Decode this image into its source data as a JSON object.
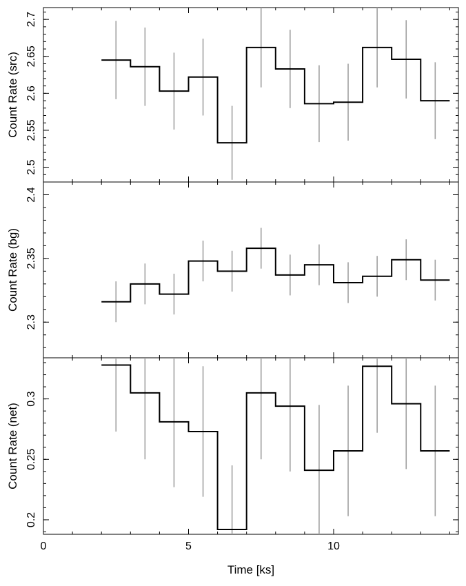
{
  "chart_data": [
    {
      "type": "line",
      "ylabel": "Count Rate (src)",
      "x": [
        2.5,
        3.5,
        4.5,
        5.5,
        6.5,
        7.5,
        8.5,
        9.5,
        10.5,
        11.5,
        12.5,
        13.5
      ],
      "bin_edges": [
        2,
        3,
        4,
        5,
        6,
        7,
        8,
        9,
        10,
        11,
        12,
        13,
        14
      ],
      "values": [
        2.645,
        2.636,
        2.603,
        2.622,
        2.533,
        2.662,
        2.633,
        2.586,
        2.588,
        2.662,
        2.646,
        2.59
      ],
      "errors": [
        0.053,
        0.053,
        0.052,
        0.052,
        0.05,
        0.054,
        0.053,
        0.052,
        0.052,
        0.054,
        0.053,
        0.052
      ],
      "xlim": [
        0,
        14.3
      ],
      "ylim": [
        2.48,
        2.716
      ],
      "yticks": [
        2.5,
        2.55,
        2.6,
        2.65,
        2.7
      ],
      "yticklabels": [
        "2.5",
        "2.55",
        "2.6",
        "2.65",
        "2.7"
      ],
      "colors": {
        "line": "#000000",
        "error": "#a0a0a0"
      }
    },
    {
      "type": "line",
      "ylabel": "Count Rate (bg)",
      "x": [
        2.5,
        3.5,
        4.5,
        5.5,
        6.5,
        7.5,
        8.5,
        9.5,
        10.5,
        11.5,
        12.5,
        13.5
      ],
      "bin_edges": [
        2,
        3,
        4,
        5,
        6,
        7,
        8,
        9,
        10,
        11,
        12,
        13,
        14
      ],
      "values": [
        2.316,
        2.33,
        2.322,
        2.348,
        2.34,
        2.358,
        2.337,
        2.345,
        2.331,
        2.336,
        2.349,
        2.333
      ],
      "errors": [
        0.016,
        0.016,
        0.016,
        0.016,
        0.016,
        0.016,
        0.016,
        0.016,
        0.016,
        0.016,
        0.016,
        0.016
      ],
      "xlim": [
        0,
        14.3
      ],
      "ylim": [
        2.272,
        2.41
      ],
      "yticks": [
        2.3,
        2.35,
        2.4
      ],
      "yticklabels": [
        "2.3",
        "2.35",
        "2.4"
      ],
      "colors": {
        "line": "#000000",
        "error": "#a0a0a0"
      }
    },
    {
      "type": "line",
      "ylabel": "Count Rate (net)",
      "xlabel": "Time [ks]",
      "x": [
        2.5,
        3.5,
        4.5,
        5.5,
        6.5,
        7.5,
        8.5,
        9.5,
        10.5,
        11.5,
        12.5,
        13.5
      ],
      "bin_edges": [
        2,
        3,
        4,
        5,
        6,
        7,
        8,
        9,
        10,
        11,
        12,
        13,
        14
      ],
      "values": [
        0.328,
        0.305,
        0.281,
        0.273,
        0.192,
        0.305,
        0.294,
        0.241,
        0.257,
        0.327,
        0.296,
        0.257
      ],
      "errors": [
        0.055,
        0.055,
        0.054,
        0.054,
        0.053,
        0.055,
        0.054,
        0.054,
        0.054,
        0.055,
        0.054,
        0.054
      ],
      "xlim": [
        0,
        14.3
      ],
      "ylim": [
        0.188,
        0.334
      ],
      "yticks": [
        0.2,
        0.25,
        0.3
      ],
      "yticklabels": [
        "0.2",
        "0.25",
        "0.3"
      ],
      "xticks": [
        0,
        5,
        10
      ],
      "xticklabels": [
        "0",
        "5",
        "10"
      ],
      "colors": {
        "line": "#000000",
        "error": "#a0a0a0"
      }
    }
  ]
}
